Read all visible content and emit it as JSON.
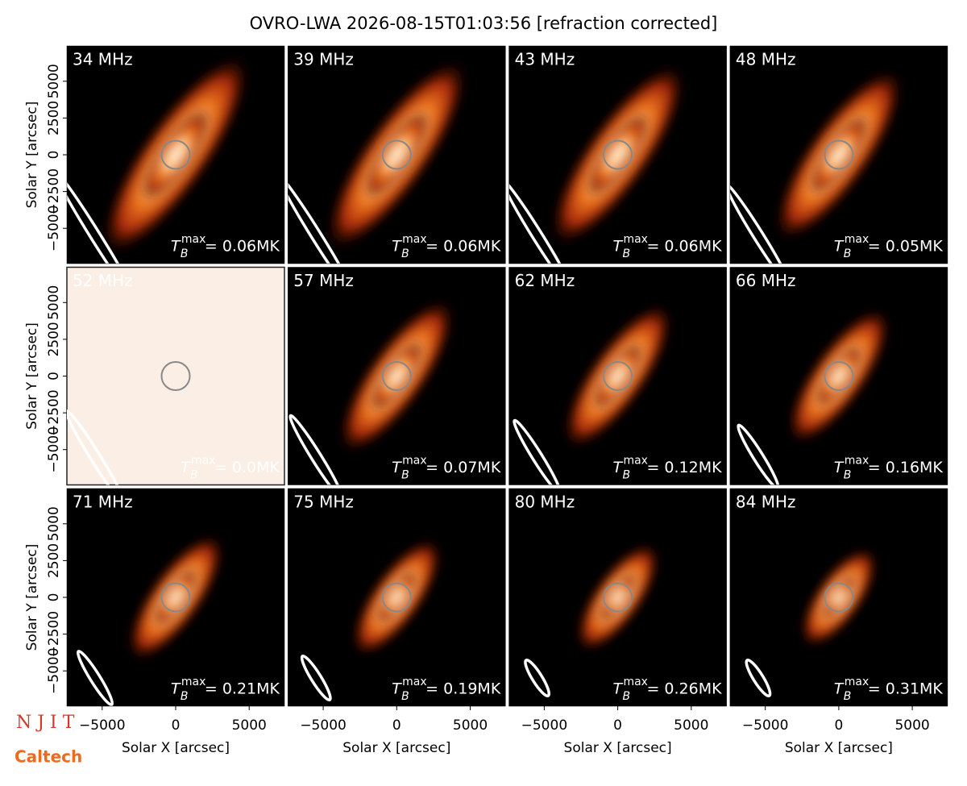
{
  "chart_data": {
    "type": "image-grid",
    "title": "OVRO-LWA 2026-08-15T01:03:56 [refraction corrected]",
    "xlabel": "Solar X [arcsec]",
    "ylabel": "Solar Y [arcsec]",
    "xlim": [
      -7400,
      7400
    ],
    "ylim": [
      -7400,
      7400
    ],
    "xticks": [
      {
        "value": -5000,
        "label": "−5000"
      },
      0,
      5000
    ],
    "yticks": [
      {
        "value": -5000,
        "label": "−5000"
      },
      {
        "value": -2500,
        "label": "−2500"
      },
      0,
      2500,
      5000
    ],
    "tb_symbol": "T",
    "tb_subscript": "B",
    "tb_superscript": "max",
    "panels": [
      {
        "label": "34 MHz",
        "tmax_label": "= 0.06MK"
      },
      {
        "label": "39 MHz",
        "tmax_label": "= 0.06MK"
      },
      {
        "label": "43 MHz",
        "tmax_label": "= 0.06MK"
      },
      {
        "label": "48 MHz",
        "tmax_label": "= 0.05MK"
      },
      {
        "label": "52 MHz",
        "tmax_label": "= 0.0MK"
      },
      {
        "label": "57 MHz",
        "tmax_label": "= 0.07MK"
      },
      {
        "label": "62 MHz",
        "tmax_label": "= 0.12MK"
      },
      {
        "label": "66 MHz",
        "tmax_label": "= 0.16MK"
      },
      {
        "label": "71 MHz",
        "tmax_label": "= 0.21MK"
      },
      {
        "label": "75 MHz",
        "tmax_label": "= 0.19MK"
      },
      {
        "label": "80 MHz",
        "tmax_label": "= 0.26MK"
      },
      {
        "label": "84 MHz",
        "tmax_label": "= 0.31MK"
      }
    ],
    "logos": [
      "N J I T",
      "Caltech"
    ]
  }
}
